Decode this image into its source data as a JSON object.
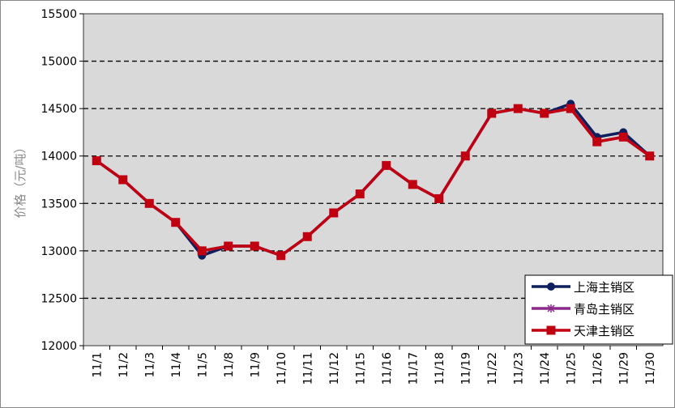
{
  "chart_data": {
    "type": "line",
    "title": "",
    "xlabel": "",
    "ylabel": "价格（元/吨）",
    "ylim": [
      12000,
      15500
    ],
    "yticks": [
      12000,
      12500,
      13000,
      13500,
      14000,
      14500,
      15000,
      15500
    ],
    "grid": true,
    "legend_position": "bottom-right",
    "categories": [
      "11/1",
      "11/2",
      "11/3",
      "11/4",
      "11/5",
      "11/8",
      "11/9",
      "11/10",
      "11/11",
      "11/12",
      "11/15",
      "11/16",
      "11/17",
      "11/18",
      "11/19",
      "11/22",
      "11/23",
      "11/24",
      "11/25",
      "11/26",
      "11/29",
      "11/30"
    ],
    "series": [
      {
        "name": "上海主销区",
        "color": "#0d1f5c",
        "marker": "circle",
        "values": [
          13950,
          13750,
          13500,
          13300,
          12950,
          13050,
          13050,
          12950,
          13150,
          13400,
          13600,
          13900,
          13700,
          13550,
          14000,
          14450,
          14500,
          14450,
          14550,
          14200,
          14250,
          14000
        ]
      },
      {
        "name": "青岛主销区",
        "color": "#8b2a8b",
        "marker": "star",
        "values": [
          13950,
          13750,
          13500,
          13300,
          13000,
          13050,
          13050,
          12950,
          13150,
          13400,
          13600,
          13900,
          13700,
          13550,
          14000,
          14450,
          14500,
          14450,
          14500,
          14150,
          14200,
          14000
        ]
      },
      {
        "name": "天津主销区",
        "color": "#c00010",
        "marker": "square",
        "values": [
          13950,
          13750,
          13500,
          13300,
          13000,
          13050,
          13050,
          12950,
          13150,
          13400,
          13600,
          13900,
          13700,
          13550,
          14000,
          14450,
          14500,
          14450,
          14500,
          14150,
          14200,
          14000
        ]
      }
    ]
  }
}
